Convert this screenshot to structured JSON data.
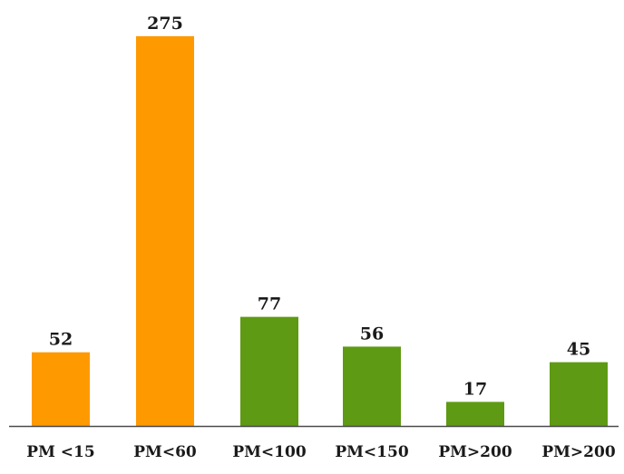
{
  "chart_data": {
    "type": "bar",
    "categories": [
      "PM <15",
      "PM<60",
      "PM<100",
      "PM<150",
      "PM>200",
      "PM>200"
    ],
    "values": [
      52,
      275,
      77,
      56,
      17,
      45
    ],
    "colors": [
      "#FF9900",
      "#FF9900",
      "#5E9A13",
      "#5E9A13",
      "#5E9A13",
      "#5E9A13"
    ],
    "title": "",
    "xlabel": "",
    "ylabel": "",
    "ylim": [
      0,
      275
    ],
    "grid": false,
    "legend": "none",
    "data_labels": true,
    "axis_color": "#4a4a4a"
  }
}
